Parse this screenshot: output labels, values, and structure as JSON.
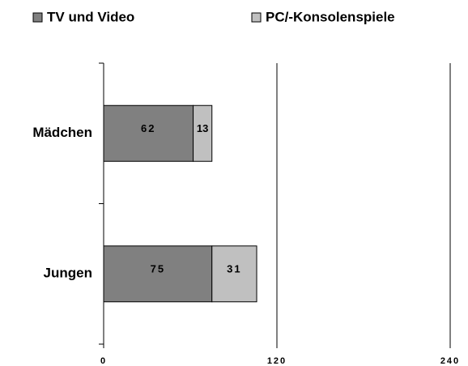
{
  "chart_data": {
    "type": "stacked_barh",
    "categories": [
      "Mädchen",
      "Jungen"
    ],
    "series": [
      {
        "name": "TV und Video",
        "color": "#808080",
        "values": [
          62,
          75
        ]
      },
      {
        "name": "PC/-Konsolenspiele",
        "color": "#c0c0c0",
        "values": [
          13,
          31
        ]
      }
    ],
    "xlim": [
      0,
      240
    ],
    "xticks": [
      0,
      120,
      240
    ],
    "grid": true,
    "legend": "top"
  }
}
